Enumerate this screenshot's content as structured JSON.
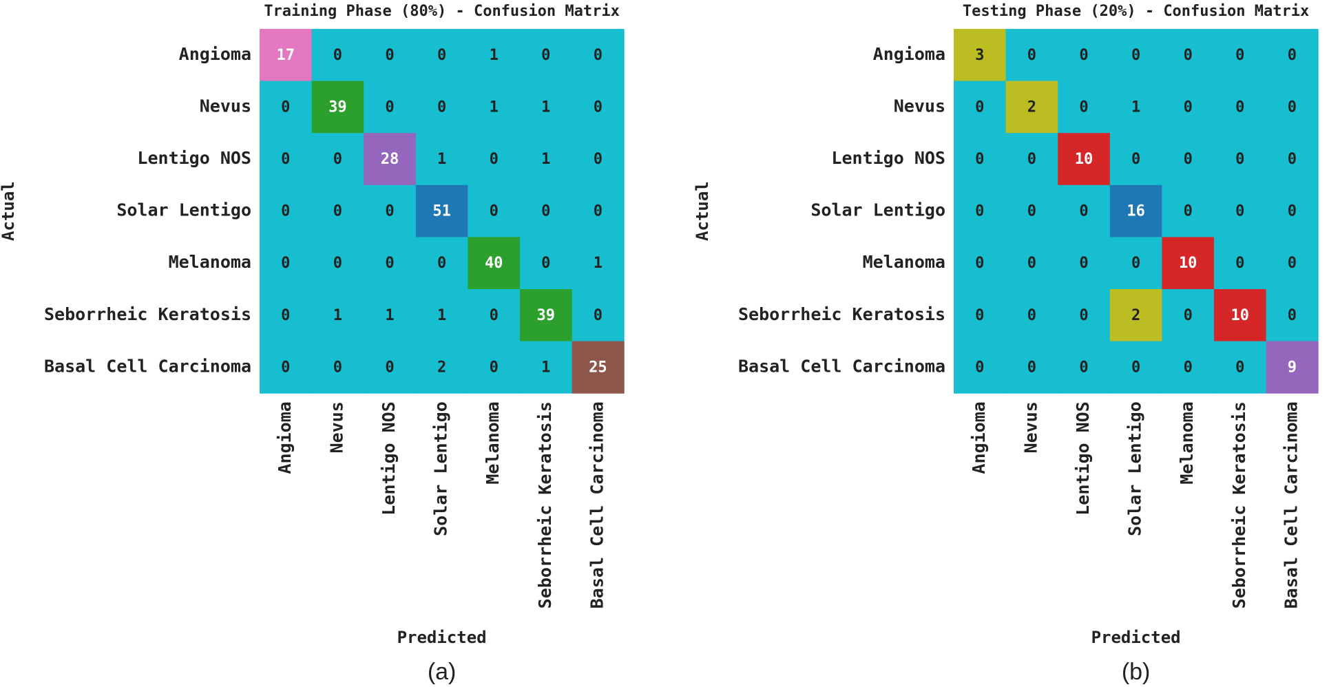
{
  "chart_data": [
    {
      "type": "heatmap",
      "title": "Training Phase (80%) - Confusion Matrix",
      "x_label": "Predicted",
      "y_label": "Actual",
      "caption": "(a)",
      "categories": [
        "Angioma",
        "Nevus",
        "Lentigo NOS",
        "Solar Lentigo",
        "Melanoma",
        "Seborrheic Keratosis",
        "Basal Cell Carcinoma"
      ],
      "values": [
        [
          17,
          0,
          0,
          0,
          1,
          0,
          0
        ],
        [
          0,
          39,
          0,
          0,
          1,
          1,
          0
        ],
        [
          0,
          0,
          28,
          1,
          0,
          1,
          0
        ],
        [
          0,
          0,
          0,
          51,
          0,
          0,
          0
        ],
        [
          0,
          0,
          0,
          0,
          40,
          0,
          1
        ],
        [
          0,
          1,
          1,
          1,
          0,
          39,
          0
        ],
        [
          0,
          0,
          0,
          2,
          0,
          1,
          25
        ]
      ],
      "zlim": [
        0,
        51
      ],
      "colormap": [
        "#17becf",
        "#bcbd22",
        "#7f7f7f",
        "#e377c2",
        "#8c564b",
        "#9467bd",
        "#d62728",
        "#2ca02c",
        "#ff7f0e",
        "#1f77b4"
      ]
    },
    {
      "type": "heatmap",
      "title": "Testing Phase (20%) - Confusion Matrix",
      "x_label": "Predicted",
      "y_label": "Actual",
      "caption": "(b)",
      "categories": [
        "Angioma",
        "Nevus",
        "Lentigo NOS",
        "Solar Lentigo",
        "Melanoma",
        "Seborrheic Keratosis",
        "Basal Cell Carcinoma"
      ],
      "values": [
        [
          3,
          0,
          0,
          0,
          0,
          0,
          0
        ],
        [
          0,
          2,
          0,
          1,
          0,
          0,
          0
        ],
        [
          0,
          0,
          10,
          0,
          0,
          0,
          0
        ],
        [
          0,
          0,
          0,
          16,
          0,
          0,
          0
        ],
        [
          0,
          0,
          0,
          0,
          10,
          0,
          0
        ],
        [
          0,
          0,
          0,
          2,
          0,
          10,
          0
        ],
        [
          0,
          0,
          0,
          0,
          0,
          0,
          9
        ]
      ],
      "zlim": [
        0,
        16
      ],
      "colormap": [
        "#17becf",
        "#bcbd22",
        "#7f7f7f",
        "#e377c2",
        "#8c564b",
        "#9467bd",
        "#d62728",
        "#2ca02c",
        "#ff7f0e",
        "#1f77b4"
      ]
    }
  ]
}
